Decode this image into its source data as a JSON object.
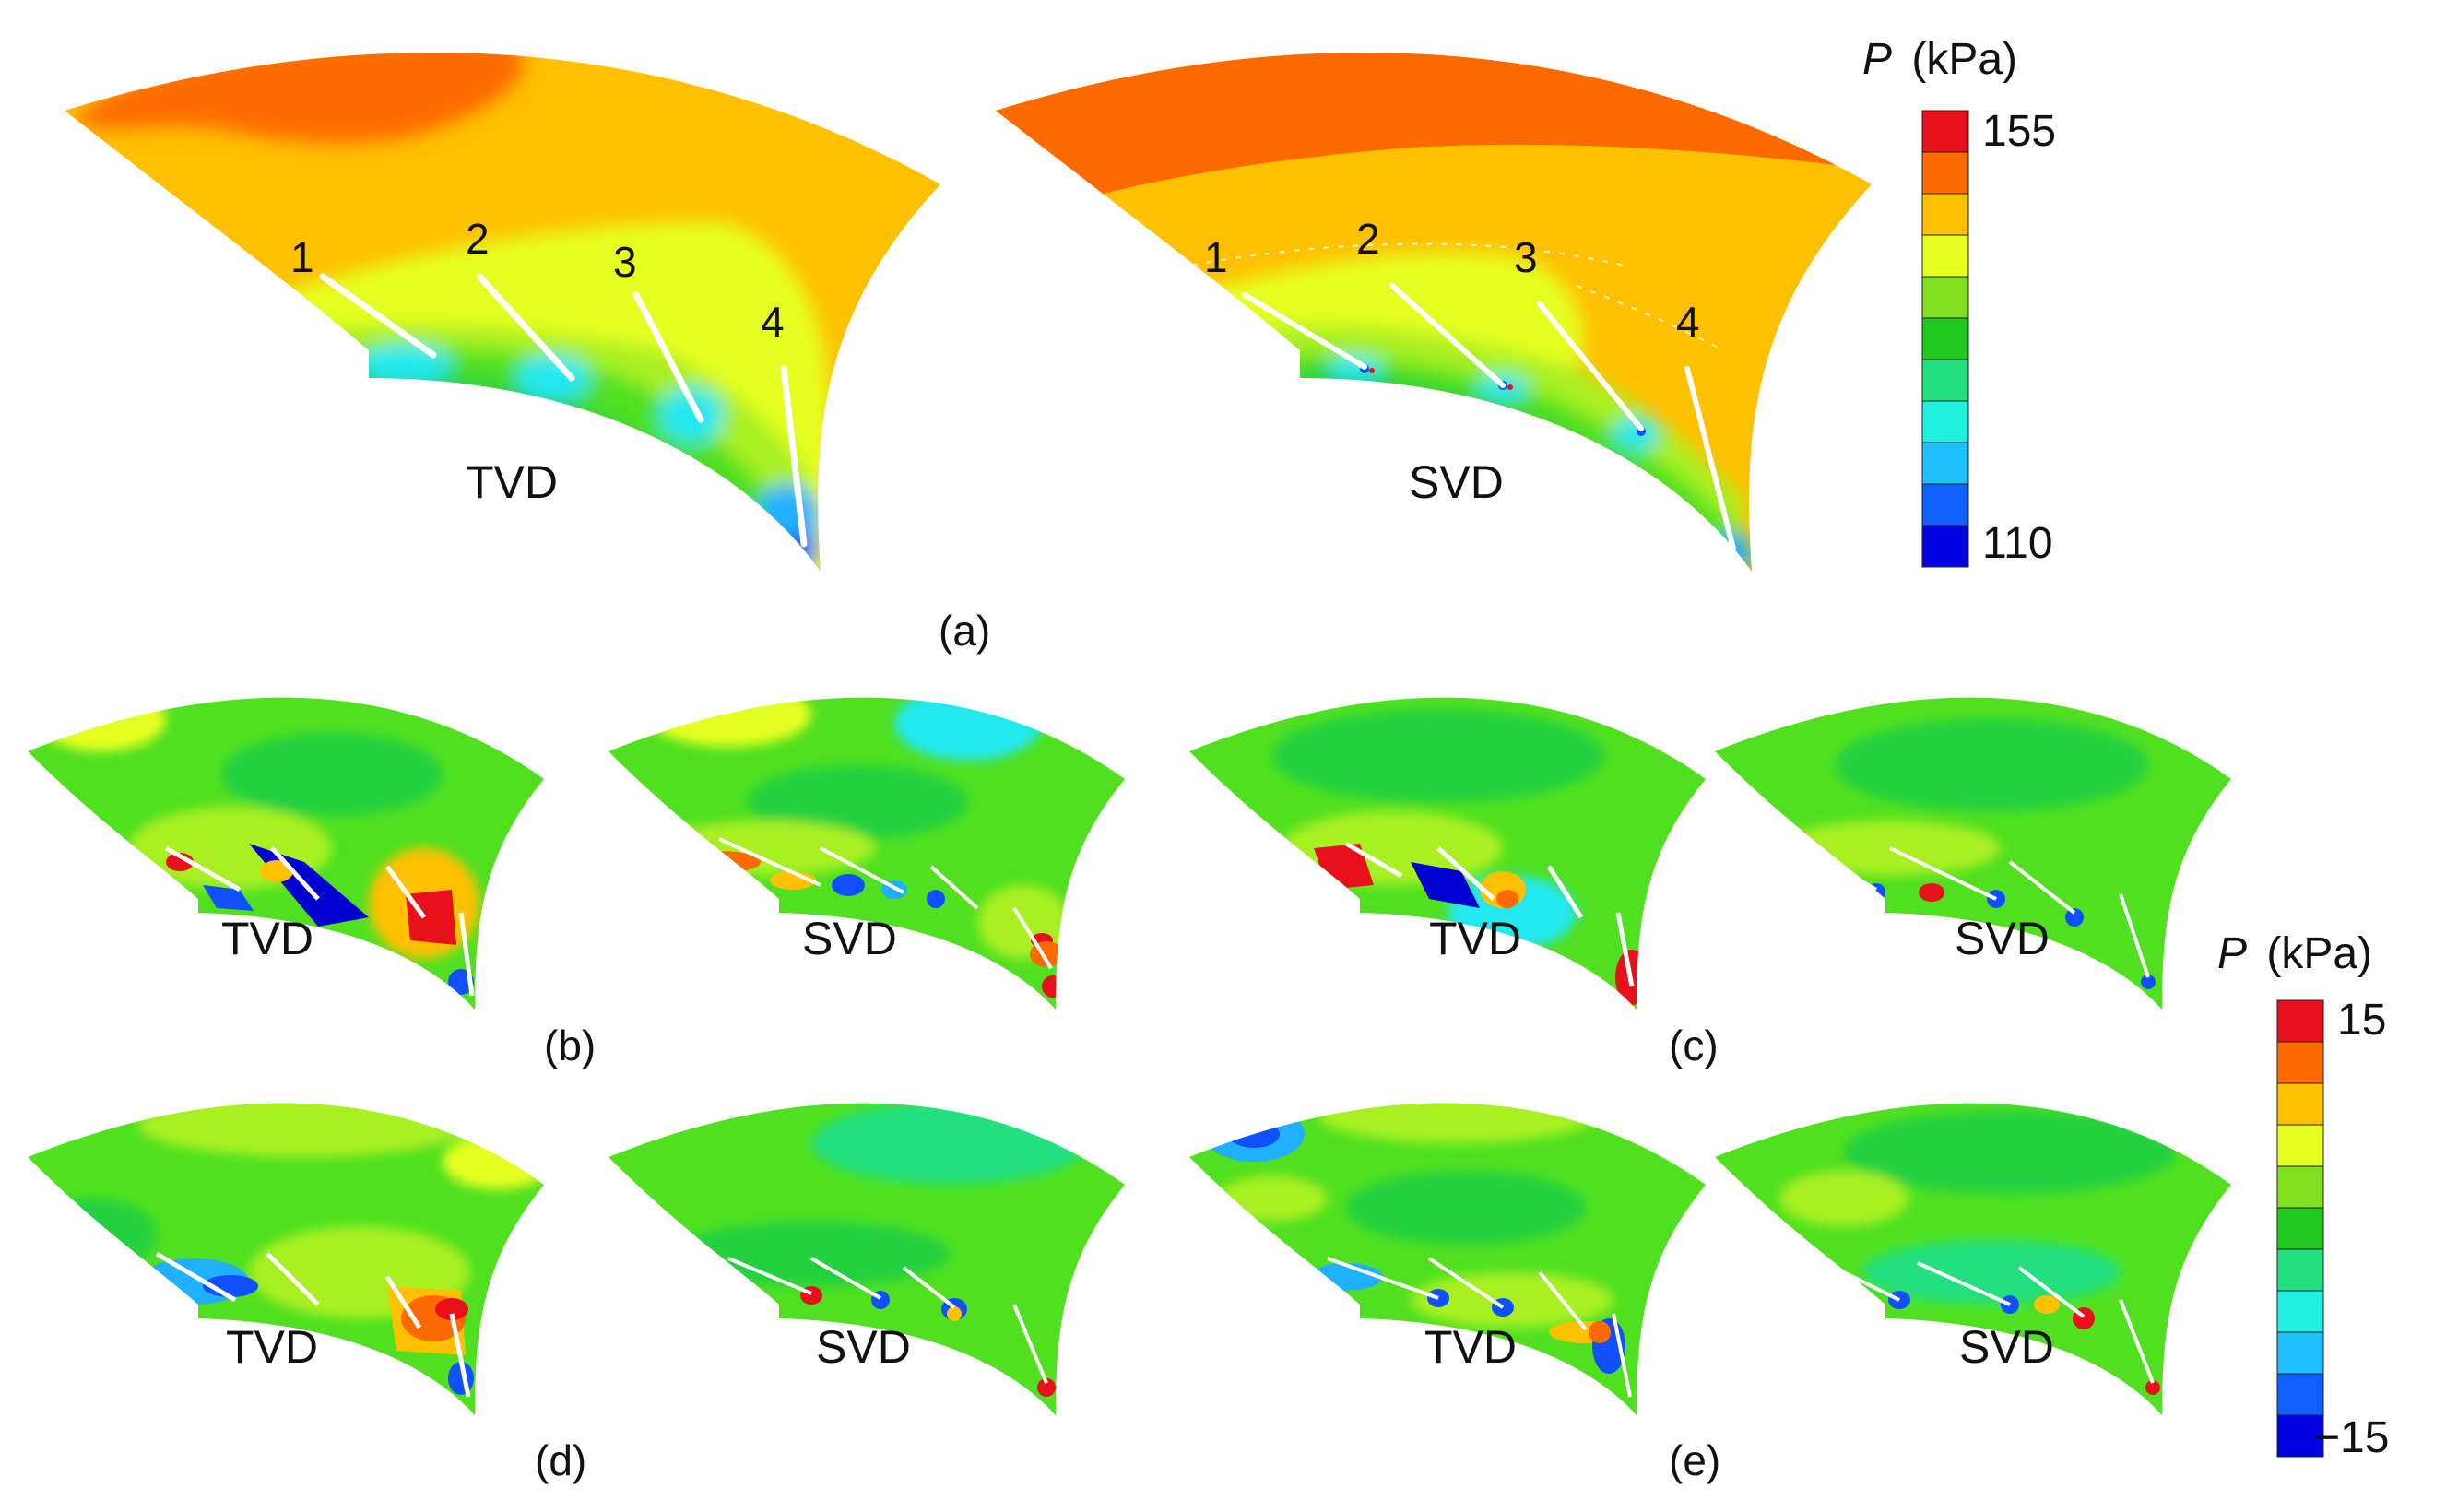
{
  "panels": {
    "a": {
      "caption": "(a)",
      "left": {
        "label": "TVD",
        "vane_numbers": [
          "1",
          "2",
          "3",
          "4"
        ]
      },
      "right": {
        "label": "SVD",
        "vane_numbers": [
          "1",
          "2",
          "3",
          "4"
        ]
      }
    },
    "b": {
      "caption": "(b)",
      "left_label": "TVD",
      "right_label": "SVD"
    },
    "c": {
      "caption": "(c)",
      "left_label": "TVD",
      "right_label": "SVD"
    },
    "d": {
      "caption": "(d)",
      "left_label": "TVD",
      "right_label": "SVD"
    },
    "e": {
      "caption": "(e)",
      "left_label": "TVD",
      "right_label": "SVD"
    }
  },
  "colorbars": {
    "top": {
      "symbol": "P",
      "unit": "(kPa)",
      "max_label": "155",
      "min_label": "110",
      "colors": [
        "#e8101a",
        "#ff6a00",
        "#ffc000",
        "#e6ff20",
        "#80e020",
        "#20c820",
        "#20e080",
        "#20f0e0",
        "#20c0ff",
        "#1060ff",
        "#0000e0"
      ]
    },
    "bottom": {
      "symbol": "P",
      "unit": "(kPa)",
      "max_label": "15",
      "min_label": "−15",
      "colors": [
        "#e8101a",
        "#ff6a00",
        "#ffc000",
        "#e6ff20",
        "#80e020",
        "#20c820",
        "#20e080",
        "#20f0e0",
        "#20c0ff",
        "#1060ff",
        "#0000e0"
      ]
    }
  },
  "palette": {
    "red": "#e8101a",
    "dark_orange": "#ff6a00",
    "orange": "#ffc000",
    "yellow": "#e6ff20",
    "yellow_green": "#a8f020",
    "green": "#50e020",
    "bright_green": "#20d040",
    "teal": "#20e0a0",
    "cyan": "#20e8f0",
    "light_blue": "#20b0ff",
    "blue": "#1050ff",
    "deep_blue": "#0000d0"
  }
}
